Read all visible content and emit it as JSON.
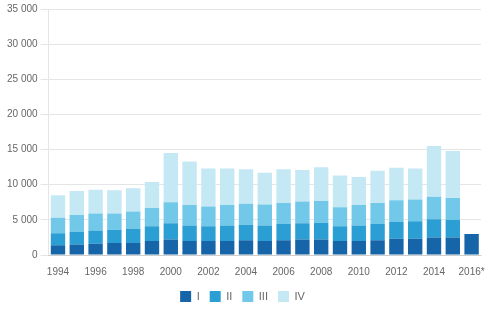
{
  "chart_data": {
    "type": "bar",
    "stacked": true,
    "categories": [
      "1994",
      null,
      "1996",
      null,
      "1998",
      null,
      "2000",
      null,
      "2002",
      null,
      "2004",
      null,
      "2006",
      null,
      "2008",
      null,
      "2010",
      null,
      "2012",
      null,
      "2014",
      null,
      "2016*"
    ],
    "series": [
      {
        "name": "I",
        "color": "#1565A8",
        "values": [
          1400,
          1500,
          1600,
          1700,
          1700,
          2000,
          2200,
          2000,
          2000,
          2000,
          2100,
          2000,
          2100,
          2200,
          2200,
          2000,
          2000,
          2100,
          2300,
          2300,
          2500,
          2500,
          3000
        ]
      },
      {
        "name": "II",
        "color": "#2B9FD4",
        "values": [
          1700,
          1800,
          1900,
          1900,
          2000,
          2100,
          2300,
          2200,
          2100,
          2200,
          2200,
          2200,
          2300,
          2300,
          2400,
          2100,
          2200,
          2300,
          2400,
          2500,
          2600,
          2500,
          0
        ]
      },
      {
        "name": "III",
        "color": "#72C8E8",
        "values": [
          2200,
          2400,
          2400,
          2300,
          2500,
          2600,
          3000,
          2900,
          2800,
          2900,
          3000,
          3000,
          3000,
          3100,
          3100,
          2700,
          2900,
          3000,
          3100,
          3100,
          3200,
          3100,
          0
        ]
      },
      {
        "name": "IV",
        "color": "#C5E8F5",
        "values": [
          3200,
          3400,
          3400,
          3300,
          3300,
          3700,
          7000,
          6200,
          5400,
          5200,
          4900,
          4500,
          4800,
          4500,
          4800,
          4500,
          4000,
          4600,
          4600,
          4400,
          7200,
          6700,
          0
        ]
      }
    ],
    "ylim": [
      0,
      35000
    ],
    "yticks": [
      0,
      {
        "value": 5000,
        "label": "5 000"
      },
      {
        "value": 10000,
        "label": "10 000"
      },
      {
        "value": 15000,
        "label": "15 000"
      },
      {
        "value": 20000,
        "label": "20 000"
      },
      {
        "value": 25000,
        "label": "25 000"
      },
      {
        "value": 30000,
        "label": "30 000"
      },
      {
        "value": 35000,
        "label": "35 000"
      }
    ],
    "grid": true,
    "legend": "bottom"
  }
}
